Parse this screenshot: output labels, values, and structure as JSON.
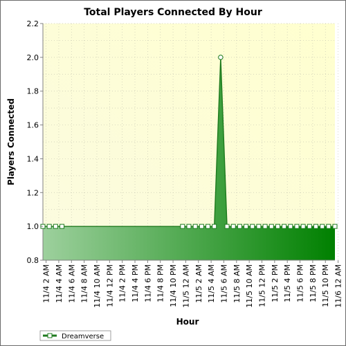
{
  "chart_data": {
    "type": "area",
    "title": "Total Players Connected By Hour",
    "xlabel": "Hour",
    "ylabel": "Players Connected",
    "ylim": [
      0.8,
      2.2
    ],
    "yticks": [
      "0.8",
      "1.0",
      "1.2",
      "1.4",
      "1.6",
      "1.8",
      "2.0",
      "2.2"
    ],
    "x_tick_labels": [
      "11/4 2 AM",
      "11/4 4 AM",
      "11/4 6 AM",
      "11/4 8 AM",
      "11/4 10 AM",
      "11/4 12 PM",
      "11/4 2 PM",
      "11/4 4 PM",
      "11/4 6 PM",
      "11/4 8 PM",
      "11/4 10 PM",
      "11/5 12 AM",
      "11/5 2 AM",
      "11/5 4 AM",
      "11/5 6 AM",
      "11/5 8 AM",
      "11/5 10 AM",
      "11/5 12 PM",
      "11/5 2 PM",
      "11/5 4 PM",
      "11/5 6 PM",
      "11/5 8 PM",
      "11/5 10 PM",
      "11/6 12 AM"
    ],
    "x_start_hour_index": 0,
    "x_end_hour_index": 46,
    "grid": true,
    "legend": "bottom-left",
    "series": [
      {
        "name": "Dreamverse",
        "points": [
          [
            0,
            1.0
          ],
          [
            1,
            1.0
          ],
          [
            2,
            1.0
          ],
          [
            3,
            1.0
          ],
          [
            22,
            1.0
          ],
          [
            23,
            1.0
          ],
          [
            24,
            1.0
          ],
          [
            25,
            1.0
          ],
          [
            26,
            1.0
          ],
          [
            27,
            1.0
          ],
          [
            28,
            2.0
          ],
          [
            29,
            1.0
          ],
          [
            30,
            1.0
          ],
          [
            31,
            1.0
          ],
          [
            32,
            1.0
          ],
          [
            33,
            1.0
          ],
          [
            34,
            1.0
          ],
          [
            35,
            1.0
          ],
          [
            36,
            1.0
          ],
          [
            37,
            1.0
          ],
          [
            38,
            1.0
          ],
          [
            39,
            1.0
          ],
          [
            40,
            1.0
          ],
          [
            41,
            1.0
          ],
          [
            42,
            1.0
          ],
          [
            43,
            1.0
          ],
          [
            44,
            1.0
          ],
          [
            45,
            1.0
          ],
          [
            46,
            1.0
          ]
        ]
      }
    ],
    "colors": {
      "plot_bg_light": "#fbfbe0",
      "plot_bg_dark": "#ffffcf",
      "area_light": "#9dd09d",
      "area_dark": "#008000",
      "line": "#1e7a1e",
      "marker_fill": "#ffffff",
      "marker_stroke": "#1e7a1e",
      "grid": "#c8c8b4"
    }
  }
}
